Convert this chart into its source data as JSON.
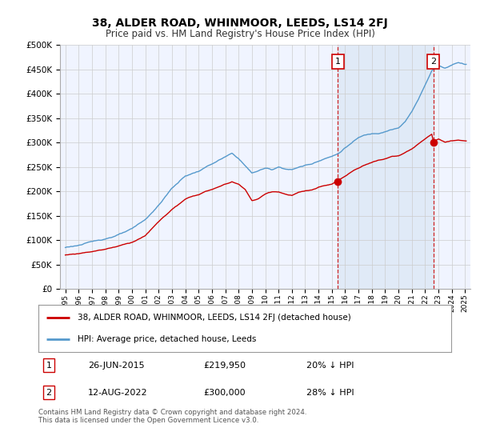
{
  "title": "38, ALDER ROAD, WHINMOOR, LEEDS, LS14 2FJ",
  "subtitle": "Price paid vs. HM Land Registry's House Price Index (HPI)",
  "legend_label_red": "38, ALDER ROAD, WHINMOOR, LEEDS, LS14 2FJ (detached house)",
  "legend_label_blue": "HPI: Average price, detached house, Leeds",
  "sale1_date": "26-JUN-2015",
  "sale1_price": 219950,
  "sale1_hpi": "20% ↓ HPI",
  "sale2_date": "12-AUG-2022",
  "sale2_price": 300000,
  "sale2_hpi": "28% ↓ HPI",
  "footer": "Contains HM Land Registry data © Crown copyright and database right 2024.\nThis data is licensed under the Open Government Licence v3.0.",
  "ylim": [
    0,
    500000
  ],
  "yticks": [
    0,
    50000,
    100000,
    150000,
    200000,
    250000,
    300000,
    350000,
    400000,
    450000,
    500000
  ],
  "background_color": "#ffffff",
  "plot_bg_color": "#f0f4ff",
  "grid_color": "#cccccc",
  "hpi_color": "#5599cc",
  "sale_color": "#cc0000",
  "shade_color": "#dce8f5",
  "sale1_x": 2015.46,
  "sale2_x": 2022.62,
  "hpi_base_points": [
    [
      1995,
      85000
    ],
    [
      1996,
      90000
    ],
    [
      1997,
      96000
    ],
    [
      1998,
      103000
    ],
    [
      1999,
      112000
    ],
    [
      2000,
      122000
    ],
    [
      2001,
      140000
    ],
    [
      2002,
      170000
    ],
    [
      2003,
      205000
    ],
    [
      2004,
      230000
    ],
    [
      2005,
      240000
    ],
    [
      2006,
      255000
    ],
    [
      2007.5,
      275000
    ],
    [
      2008,
      265000
    ],
    [
      2008.5,
      250000
    ],
    [
      2009,
      235000
    ],
    [
      2009.5,
      240000
    ],
    [
      2010,
      245000
    ],
    [
      2010.5,
      242000
    ],
    [
      2011,
      248000
    ],
    [
      2011.5,
      245000
    ],
    [
      2012,
      243000
    ],
    [
      2012.5,
      248000
    ],
    [
      2013,
      252000
    ],
    [
      2013.5,
      255000
    ],
    [
      2014,
      262000
    ],
    [
      2014.5,
      268000
    ],
    [
      2015,
      272000
    ],
    [
      2015.5,
      278000
    ],
    [
      2016,
      290000
    ],
    [
      2016.5,
      300000
    ],
    [
      2017,
      310000
    ],
    [
      2017.5,
      315000
    ],
    [
      2018,
      318000
    ],
    [
      2018.5,
      320000
    ],
    [
      2019,
      325000
    ],
    [
      2019.5,
      330000
    ],
    [
      2020,
      332000
    ],
    [
      2020.5,
      345000
    ],
    [
      2021,
      365000
    ],
    [
      2021.5,
      390000
    ],
    [
      2022,
      420000
    ],
    [
      2022.5,
      450000
    ],
    [
      2023,
      460000
    ],
    [
      2023.5,
      455000
    ],
    [
      2024,
      462000
    ],
    [
      2024.5,
      468000
    ],
    [
      2025,
      465000
    ]
  ],
  "red_base_points": [
    [
      1995,
      70000
    ],
    [
      1996,
      73000
    ],
    [
      1997,
      78000
    ],
    [
      1998,
      83000
    ],
    [
      1999,
      90000
    ],
    [
      2000,
      98000
    ],
    [
      2001,
      112000
    ],
    [
      2002,
      140000
    ],
    [
      2003,
      165000
    ],
    [
      2004,
      185000
    ],
    [
      2005,
      195000
    ],
    [
      2006,
      205000
    ],
    [
      2007.5,
      220000
    ],
    [
      2008,
      215000
    ],
    [
      2008.5,
      205000
    ],
    [
      2009,
      182000
    ],
    [
      2009.5,
      185000
    ],
    [
      2010,
      195000
    ],
    [
      2010.5,
      200000
    ],
    [
      2011,
      200000
    ],
    [
      2011.5,
      195000
    ],
    [
      2012,
      192000
    ],
    [
      2012.5,
      198000
    ],
    [
      2013,
      200000
    ],
    [
      2013.5,
      202000
    ],
    [
      2014,
      207000
    ],
    [
      2014.5,
      210000
    ],
    [
      2015,
      213000
    ],
    [
      2015.46,
      219950
    ],
    [
      2015.6,
      222000
    ],
    [
      2016,
      228000
    ],
    [
      2016.5,
      238000
    ],
    [
      2017,
      245000
    ],
    [
      2017.5,
      252000
    ],
    [
      2018,
      258000
    ],
    [
      2018.5,
      262000
    ],
    [
      2019,
      265000
    ],
    [
      2019.5,
      270000
    ],
    [
      2020,
      272000
    ],
    [
      2020.5,
      278000
    ],
    [
      2021,
      285000
    ],
    [
      2021.5,
      295000
    ],
    [
      2022,
      305000
    ],
    [
      2022.5,
      315000
    ],
    [
      2022.62,
      300000
    ],
    [
      2023,
      305000
    ],
    [
      2023.5,
      298000
    ],
    [
      2024,
      300000
    ],
    [
      2024.5,
      302000
    ],
    [
      2025,
      300000
    ]
  ]
}
